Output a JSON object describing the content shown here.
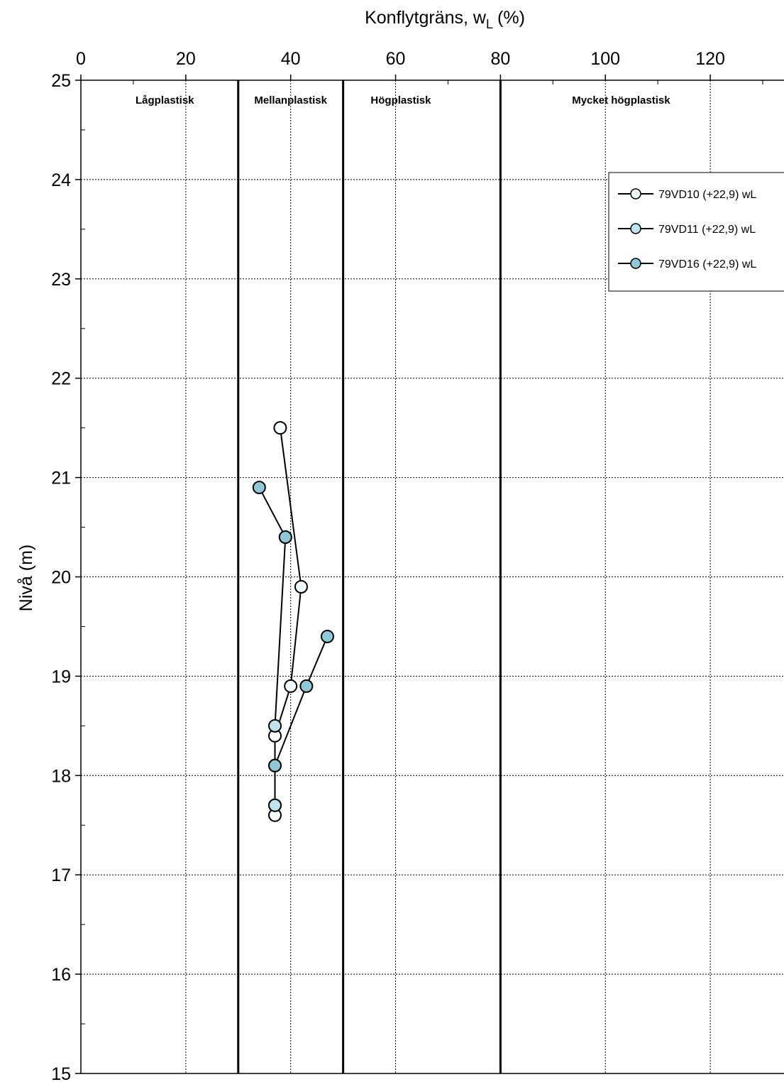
{
  "chart_data": {
    "type": "scatter",
    "title": "",
    "xlabel_main": "Konflytgräns, w",
    "xlabel_sub": "L",
    "xlabel_unit": "(%)",
    "ylabel": "Nivå (m)",
    "xlim": [
      0,
      130
    ],
    "ylim": [
      15,
      25
    ],
    "x_ticks": [
      0,
      20,
      40,
      60,
      80,
      100,
      120
    ],
    "x_tick_labels": [
      "0",
      "20",
      "40",
      "60",
      "80",
      "100",
      "120"
    ],
    "y_ticks": [
      15,
      16,
      17,
      18,
      19,
      20,
      21,
      22,
      23,
      24,
      25
    ],
    "y_tick_labels": [
      "15",
      "16",
      "17",
      "18",
      "19",
      "20",
      "21",
      "22",
      "23",
      "24",
      "25"
    ],
    "x_axis_position": "top",
    "grid": true,
    "zone_boundaries": [
      30,
      50,
      80
    ],
    "zones": [
      {
        "label": "Lågplastisk",
        "x_center": 16
      },
      {
        "label": "Mellanplastisk",
        "x_center": 40
      },
      {
        "label": "Högplastisk",
        "x_center": 61
      },
      {
        "label": "Mycket högplastisk",
        "x_center": 103
      }
    ],
    "legend_position": "right",
    "series": [
      {
        "name": "79VD10 (+22,9) wL",
        "color": "#f2fafc",
        "x": [
          38,
          42,
          40,
          37,
          37,
          37
        ],
        "y": [
          21.5,
          19.9,
          18.9,
          18.4,
          17.7,
          17.6
        ]
      },
      {
        "name": "79VD11 (+22,9) wL",
        "color": "#c0e4ee",
        "x": [
          39,
          37,
          37,
          37
        ],
        "y": [
          20.4,
          18.5,
          18.1,
          17.7
        ]
      },
      {
        "name": "79VD16 (+22,9) wL",
        "color": "#8fc9d8",
        "x": [
          34,
          39
        ],
        "y": [
          20.9,
          20.4
        ]
      },
      {
        "name": "",
        "color": "#8fc9d8",
        "x": [
          47,
          43,
          37
        ],
        "y": [
          19.4,
          18.9,
          18.1
        ]
      }
    ]
  }
}
